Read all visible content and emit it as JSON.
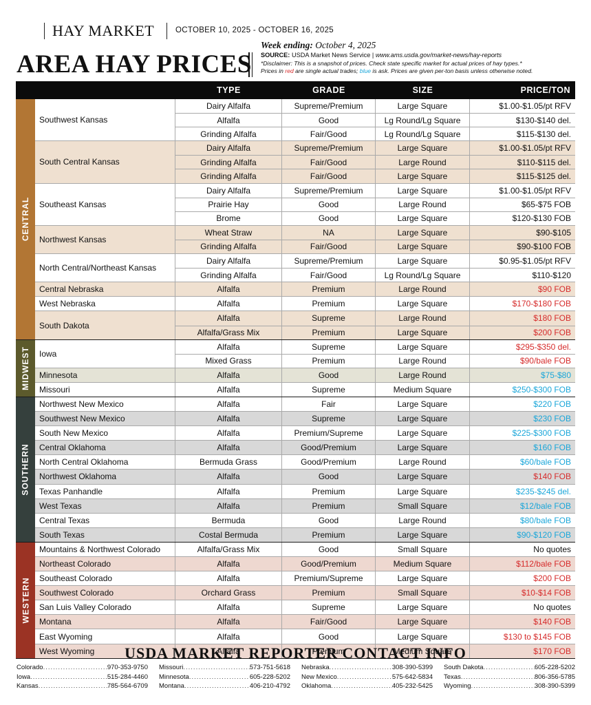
{
  "header": {
    "publication": "HAY MARKET",
    "date_range": "OCTOBER 10, 2025 - OCTOBER 16, 2025",
    "title": "AREA HAY PRICES",
    "week_ending_label": "Week ending:",
    "week_ending_date": "October 4, 2025",
    "source_label": "SOURCE:",
    "source_name": "USDA Market News Service",
    "source_sep": "|",
    "source_url": "www.ams.usda.gov/market-news/hay-reports",
    "disclaimer": "*Disclaimer: This is a snapshot of prices. Check state specific market for actual prices of hay types.*",
    "legend_1": "Prices in ",
    "legend_red": "red",
    "legend_2": " are single actual trades; ",
    "legend_blue": "blue",
    "legend_3": " is ask. Prices are given per-ton basis unless otherwise noted."
  },
  "table": {
    "headers": {
      "type": "TYPE",
      "grade": "GRADE",
      "size": "SIZE",
      "price": "PRICE/TON"
    },
    "colors": {
      "red": "#d62b2b",
      "blue": "#1aa6d9"
    },
    "regions": [
      {
        "name": "CENTRAL",
        "color": "#b27634",
        "shade": "#efe0d0",
        "groups": [
          {
            "location": "Southwest Kansas",
            "shaded": false,
            "rows": [
              {
                "type": "Dairy Alfalfa",
                "grade": "Supreme/Premium",
                "size": "Large Square",
                "price": "$1.00-$1.05/pt RFV",
                "color": "black"
              },
              {
                "type": "Alfalfa",
                "grade": "Good",
                "size": "Lg Round/Lg Square",
                "price": "$130-$140 del.",
                "color": "black"
              },
              {
                "type": "Grinding Alfalfa",
                "grade": "Fair/Good",
                "size": "Lg Round/Lg Square",
                "price": "$115-$130 del.",
                "color": "black"
              }
            ]
          },
          {
            "location": "South Central Kansas",
            "shaded": true,
            "rows": [
              {
                "type": "Dairy Alfalfa",
                "grade": "Supreme/Premium",
                "size": "Large Square",
                "price": "$1.00-$1.05/pt RFV",
                "color": "black"
              },
              {
                "type": "Grinding Alfalfa",
                "grade": "Fair/Good",
                "size": "Large Round",
                "price": "$110-$115 del.",
                "color": "black"
              },
              {
                "type": "Grinding Alfalfa",
                "grade": "Fair/Good",
                "size": "Large Square",
                "price": "$115-$125 del.",
                "color": "black"
              }
            ]
          },
          {
            "location": "Southeast Kansas",
            "shaded": false,
            "rows": [
              {
                "type": "Dairy Alfalfa",
                "grade": "Supreme/Premium",
                "size": "Large Square",
                "price": "$1.00-$1.05/pt RFV",
                "color": "black"
              },
              {
                "type": "Prairie Hay",
                "grade": "Good",
                "size": "Large Round",
                "price": "$65-$75 FOB",
                "color": "black"
              },
              {
                "type": "Brome",
                "grade": "Good",
                "size": "Large Square",
                "price": "$120-$130 FOB",
                "color": "black"
              }
            ]
          },
          {
            "location": "Northwest Kansas",
            "shaded": true,
            "rows": [
              {
                "type": "Wheat Straw",
                "grade": "NA",
                "size": "Large Square",
                "price": "$90-$105",
                "color": "black"
              },
              {
                "type": "Grinding Alfalfa",
                "grade": "Fair/Good",
                "size": "Large Square",
                "price": "$90-$100 FOB",
                "color": "black"
              }
            ]
          },
          {
            "location": "North Central/Northeast Kansas",
            "shaded": false,
            "rows": [
              {
                "type": "Dairy Alfalfa",
                "grade": "Supreme/Premium",
                "size": "Large Square",
                "price": "$0.95-$1.05/pt RFV",
                "color": "black"
              },
              {
                "type": "Grinding Alfalfa",
                "grade": "Fair/Good",
                "size": "Lg Round/Lg Square",
                "price": "$110-$120",
                "color": "black"
              }
            ]
          },
          {
            "location": "Central Nebraska",
            "shaded": true,
            "rows": [
              {
                "type": "Alfalfa",
                "grade": "Premium",
                "size": "Large Round",
                "price": "$90 FOB",
                "color": "red"
              }
            ]
          },
          {
            "location": "West Nebraska",
            "shaded": false,
            "rows": [
              {
                "type": "Alfalfa",
                "grade": "Premium",
                "size": "Large Square",
                "price": "$170-$180 FOB",
                "color": "red"
              }
            ]
          },
          {
            "location": "South Dakota",
            "shaded": true,
            "rows": [
              {
                "type": "Alfalfa",
                "grade": "Supreme",
                "size": "Large Round",
                "price": "$180 FOB",
                "color": "red"
              },
              {
                "type": "Alfalfa/Grass Mix",
                "grade": "Premium",
                "size": "Large Square",
                "price": "$200 FOB",
                "color": "red"
              }
            ]
          }
        ]
      },
      {
        "name": "MIDWEST",
        "color": "#5c5a2c",
        "shade": "#e4e3d6",
        "groups": [
          {
            "location": "Iowa",
            "shaded": false,
            "rows": [
              {
                "type": "Alfalfa",
                "grade": "Supreme",
                "size": "Large Square",
                "price": "$295-$350 del.",
                "color": "red"
              },
              {
                "type": "Mixed Grass",
                "grade": "Premium",
                "size": "Large Round",
                "price": "$90/bale FOB",
                "color": "red"
              }
            ]
          },
          {
            "location": "Minnesota",
            "shaded": true,
            "rows": [
              {
                "type": "Alfalfa",
                "grade": "Good",
                "size": "Large Round",
                "price": "$75-$80",
                "color": "blue"
              }
            ]
          },
          {
            "location": "Missouri",
            "shaded": false,
            "rows": [
              {
                "type": "Alfalfa",
                "grade": "Supreme",
                "size": "Medium Square",
                "price": "$250-$300 FOB",
                "color": "blue"
              }
            ]
          }
        ]
      },
      {
        "name": "SOUTHERN",
        "color": "#35403d",
        "shade": "#d8d8d8",
        "groups": [
          {
            "location": "Northwest New Mexico",
            "shaded": false,
            "rows": [
              {
                "type": "Alfalfa",
                "grade": "Fair",
                "size": "Large Square",
                "price": "$220 FOB",
                "color": "blue"
              }
            ]
          },
          {
            "location": "Southwest New Mexico",
            "shaded": true,
            "rows": [
              {
                "type": "Alfalfa",
                "grade": "Supreme",
                "size": "Large Square",
                "price": "$230 FOB",
                "color": "blue"
              }
            ]
          },
          {
            "location": "South New Mexico",
            "shaded": false,
            "rows": [
              {
                "type": "Alfalfa",
                "grade": "Premium/Supreme",
                "size": "Large Square",
                "price": "$225-$300 FOB",
                "color": "blue"
              }
            ]
          },
          {
            "location": "Central Oklahoma",
            "shaded": true,
            "rows": [
              {
                "type": "Alfalfa",
                "grade": "Good/Premium",
                "size": "Large Square",
                "price": "$160 FOB",
                "color": "blue"
              }
            ]
          },
          {
            "location": "North Central Oklahoma",
            "shaded": false,
            "rows": [
              {
                "type": "Bermuda Grass",
                "grade": "Good/Premium",
                "size": "Large Round",
                "price": "$60/bale FOB",
                "color": "blue"
              }
            ]
          },
          {
            "location": "Northwest Oklahoma",
            "shaded": true,
            "rows": [
              {
                "type": "Alfalfa",
                "grade": "Good",
                "size": "Large Square",
                "price": "$140 FOB",
                "color": "red"
              }
            ]
          },
          {
            "location": "Texas Panhandle",
            "shaded": false,
            "rows": [
              {
                "type": "Alfalfa",
                "grade": "Premium",
                "size": "Large Square",
                "price": "$235-$245 del.",
                "color": "blue"
              }
            ]
          },
          {
            "location": "West Texas",
            "shaded": true,
            "rows": [
              {
                "type": "Alfalfa",
                "grade": "Premium",
                "size": "Small Square",
                "price": "$12/bale FOB",
                "color": "blue"
              }
            ]
          },
          {
            "location": "Central Texas",
            "shaded": false,
            "rows": [
              {
                "type": "Bermuda",
                "grade": "Good",
                "size": "Large Round",
                "price": "$80/bale FOB",
                "color": "blue"
              }
            ]
          },
          {
            "location": "South Texas",
            "shaded": true,
            "rows": [
              {
                "type": "Costal Bermuda",
                "grade": "Premium",
                "size": "Large Square",
                "price": "$90-$120 FOB",
                "color": "blue"
              }
            ]
          }
        ]
      },
      {
        "name": "WESTERN",
        "color": "#9b3324",
        "shade": "#eed8d0",
        "groups": [
          {
            "location": "Mountains & Northwest Colorado",
            "shaded": false,
            "rows": [
              {
                "type": "Alfalfa/Grass Mix",
                "grade": "Good",
                "size": "Small Square",
                "price": "No quotes",
                "color": "black"
              }
            ]
          },
          {
            "location": "Northeast Colorado",
            "shaded": true,
            "rows": [
              {
                "type": "Alfalfa",
                "grade": "Good/Premium",
                "size": "Medium Square",
                "price": "$112/bale FOB",
                "color": "red"
              }
            ]
          },
          {
            "location": "Southeast Colorado",
            "shaded": false,
            "rows": [
              {
                "type": "Alfalfa",
                "grade": "Premium/Supreme",
                "size": "Large Square",
                "price": "$200 FOB",
                "color": "red"
              }
            ]
          },
          {
            "location": "Southwest Colorado",
            "shaded": true,
            "rows": [
              {
                "type": "Orchard Grass",
                "grade": "Premium",
                "size": "Small Square",
                "price": "$10-$14 FOB",
                "color": "red"
              }
            ]
          },
          {
            "location": "San Luis Valley Colorado",
            "shaded": false,
            "rows": [
              {
                "type": "Alfalfa",
                "grade": "Supreme",
                "size": "Large Square",
                "price": "No quotes",
                "color": "black"
              }
            ]
          },
          {
            "location": "Montana",
            "shaded": true,
            "rows": [
              {
                "type": "Alfalfa",
                "grade": "Fair/Good",
                "size": "Large Square",
                "price": "$140 FOB",
                "color": "red"
              }
            ]
          },
          {
            "location": "East Wyoming",
            "shaded": false,
            "rows": [
              {
                "type": "Alfalfa",
                "grade": "Good",
                "size": "Large Square",
                "price": "$130 to $145 FOB",
                "color": "red"
              }
            ]
          },
          {
            "location": "West Wyoming",
            "shaded": true,
            "rows": [
              {
                "type": "Alfalfa",
                "grade": "Premium",
                "size": "Medium Square",
                "price": "$170 FOB",
                "color": "red"
              }
            ]
          }
        ]
      }
    ]
  },
  "contacts": {
    "title": "USDA MARKET REPORTER CONTACT INFO",
    "columns": [
      [
        {
          "state": "Colorado",
          "phone": "970-353-9750"
        },
        {
          "state": "Iowa",
          "phone": "515-284-4460"
        },
        {
          "state": "Kansas",
          "phone": "785-564-6709"
        }
      ],
      [
        {
          "state": "Missouri",
          "phone": "573-751-5618"
        },
        {
          "state": "Minnesota",
          "phone": "605-228-5202"
        },
        {
          "state": "Montana",
          "phone": "406-210-4792"
        }
      ],
      [
        {
          "state": "Nebraska",
          "phone": "308-390-5399"
        },
        {
          "state": "New Mexico",
          "phone": "575-642-5834"
        },
        {
          "state": "Oklahoma",
          "phone": "405-232-5425"
        }
      ],
      [
        {
          "state": "South Dakota",
          "phone": "605-228-5202"
        },
        {
          "state": "Texas",
          "phone": "806-356-5785"
        },
        {
          "state": "Wyoming",
          "phone": "308-390-5399"
        }
      ]
    ]
  }
}
